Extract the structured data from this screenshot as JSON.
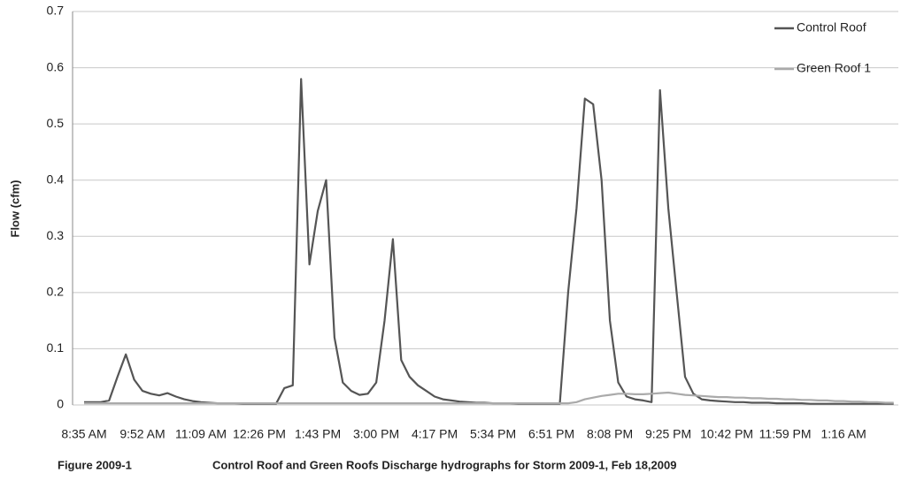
{
  "chart_data": {
    "type": "line",
    "ylabel": "Flow (cfm)",
    "figure_label": "Figure 2009-1",
    "caption": "Control Roof and Green Roofs Discharge hydrographs for Storm 2009-1, Feb 18,2009",
    "categories": [
      "8:35 AM",
      null,
      null,
      null,
      null,
      null,
      null,
      "9:52 AM",
      null,
      null,
      null,
      null,
      null,
      null,
      "11:09 AM",
      null,
      null,
      null,
      null,
      null,
      null,
      "12:26 PM",
      null,
      null,
      null,
      null,
      null,
      null,
      "1:43 PM",
      null,
      null,
      null,
      null,
      null,
      null,
      "3:00 PM",
      null,
      null,
      null,
      null,
      null,
      null,
      "4:17 PM",
      null,
      null,
      null,
      null,
      null,
      null,
      "5:34 PM",
      null,
      null,
      null,
      null,
      null,
      null,
      "6:51 PM",
      null,
      null,
      null,
      null,
      null,
      null,
      "8:08 PM",
      null,
      null,
      null,
      null,
      null,
      null,
      "9:25 PM",
      null,
      null,
      null,
      null,
      null,
      null,
      "10:42 PM",
      null,
      null,
      null,
      null,
      null,
      null,
      "11:59 PM",
      null,
      null,
      null,
      null,
      null,
      null,
      "1:16 AM",
      null,
      null,
      null,
      null,
      null,
      null
    ],
    "series": [
      {
        "name": "Control Roof",
        "color": "#555555",
        "values": [
          0.005,
          0.005,
          0.005,
          0.008,
          0.05,
          0.09,
          0.045,
          0.025,
          0.02,
          0.017,
          0.021,
          0.015,
          0.01,
          0.007,
          0.005,
          0.004,
          0.003,
          0.003,
          0.003,
          0.002,
          0.002,
          0.002,
          0.002,
          0.002,
          0.03,
          0.035,
          0.58,
          0.25,
          0.345,
          0.4,
          0.12,
          0.04,
          0.025,
          0.018,
          0.02,
          0.04,
          0.15,
          0.295,
          0.08,
          0.05,
          0.035,
          0.025,
          0.015,
          0.01,
          0.008,
          0.006,
          0.005,
          0.004,
          0.004,
          0.003,
          0.003,
          0.003,
          0.002,
          0.002,
          0.002,
          0.002,
          0.002,
          0.002,
          0.2,
          0.35,
          0.545,
          0.535,
          0.4,
          0.15,
          0.04,
          0.015,
          0.01,
          0.008,
          0.005,
          0.56,
          0.35,
          0.2,
          0.05,
          0.02,
          0.01,
          0.008,
          0.007,
          0.006,
          0.005,
          0.005,
          0.004,
          0.004,
          0.004,
          0.003,
          0.003,
          0.003,
          0.003,
          0.002,
          0.002,
          0.002,
          0.002,
          0.002,
          0.002,
          0.002,
          0.002,
          0.002,
          0.002,
          0.002
        ]
      },
      {
        "name": "Green Roof 1",
        "color": "#aaaaaa",
        "values": [
          0.003,
          0.003,
          0.003,
          0.003,
          0.003,
          0.003,
          0.003,
          0.003,
          0.003,
          0.003,
          0.003,
          0.003,
          0.003,
          0.003,
          0.003,
          0.003,
          0.003,
          0.003,
          0.003,
          0.003,
          0.003,
          0.003,
          0.003,
          0.003,
          0.003,
          0.003,
          0.003,
          0.003,
          0.003,
          0.003,
          0.003,
          0.003,
          0.003,
          0.003,
          0.003,
          0.003,
          0.003,
          0.003,
          0.003,
          0.003,
          0.003,
          0.003,
          0.003,
          0.003,
          0.003,
          0.003,
          0.003,
          0.003,
          0.003,
          0.003,
          0.003,
          0.003,
          0.003,
          0.003,
          0.003,
          0.003,
          0.003,
          0.003,
          0.003,
          0.005,
          0.01,
          0.013,
          0.016,
          0.018,
          0.02,
          0.02,
          0.019,
          0.019,
          0.02,
          0.021,
          0.022,
          0.02,
          0.018,
          0.017,
          0.016,
          0.015,
          0.014,
          0.014,
          0.013,
          0.013,
          0.012,
          0.012,
          0.011,
          0.011,
          0.01,
          0.01,
          0.009,
          0.009,
          0.008,
          0.008,
          0.007,
          0.007,
          0.006,
          0.006,
          0.005,
          0.005,
          0.004,
          0.004
        ]
      }
    ],
    "ylim": [
      0,
      0.7
    ],
    "yticks": [
      0,
      0.1,
      0.2,
      0.3,
      0.4,
      0.5,
      0.6,
      0.7
    ],
    "grid": true,
    "legend": "upper right"
  }
}
